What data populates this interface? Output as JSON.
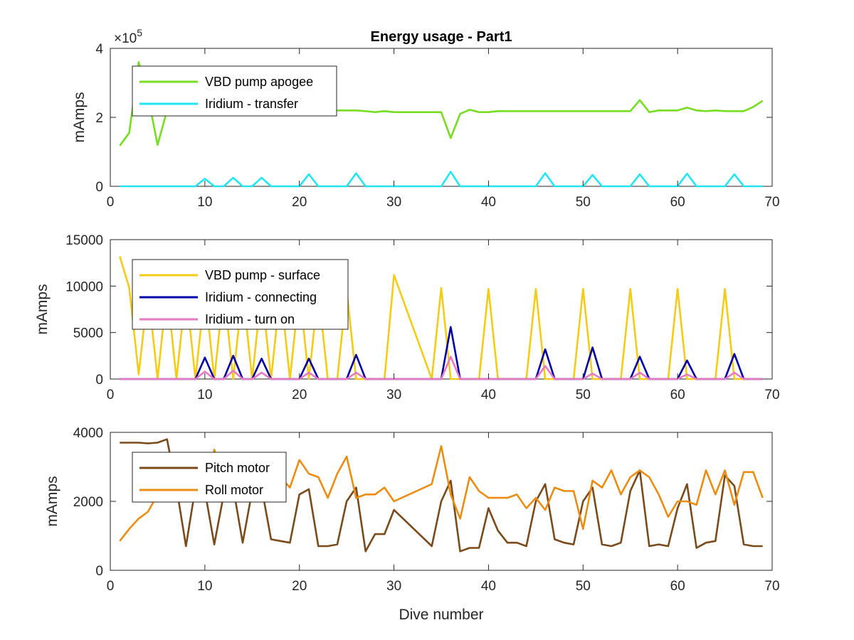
{
  "chart_data": [
    {
      "type": "line",
      "title": "Energy usage - Part1",
      "xlabel": "",
      "ylabel": "mAmps",
      "exponent_label": "×10^5",
      "exponent_base": "×10",
      "exponent_power": "5",
      "xlim": [
        0,
        70
      ],
      "ylim": [
        0,
        4
      ],
      "xticks": [
        0,
        10,
        20,
        30,
        40,
        50,
        60,
        70
      ],
      "yticks": [
        0,
        2,
        4
      ],
      "grid": false,
      "legend": "top-left",
      "series": [
        {
          "name": "VBD pump apogee",
          "color": "#77dd22",
          "x": [
            1,
            2,
            3,
            4,
            5,
            6,
            7,
            8,
            9,
            10,
            11,
            12,
            13,
            14,
            15,
            16,
            17,
            18,
            19,
            20,
            21,
            22,
            23,
            24,
            25,
            26,
            27,
            28,
            29,
            30,
            31,
            32,
            33,
            34,
            35,
            36,
            37,
            38,
            39,
            40,
            41,
            42,
            43,
            44,
            45,
            46,
            47,
            48,
            49,
            50,
            51,
            52,
            53,
            54,
            55,
            56,
            57,
            58,
            59,
            60,
            61,
            62,
            63,
            64,
            65,
            66,
            67,
            68,
            69
          ],
          "y": [
            1.18,
            1.55,
            3.6,
            2.6,
            1.2,
            2.2,
            2.2,
            2.2,
            2.2,
            2.2,
            2.2,
            2.2,
            2.2,
            2.2,
            2.2,
            2.2,
            2.2,
            2.2,
            2.2,
            2.2,
            2.2,
            2.2,
            2.2,
            2.2,
            2.2,
            2.2,
            2.18,
            2.15,
            2.18,
            2.15,
            2.15,
            2.15,
            2.15,
            2.15,
            2.15,
            1.4,
            2.1,
            2.22,
            2.15,
            2.15,
            2.18,
            2.18,
            2.18,
            2.18,
            2.18,
            2.18,
            2.18,
            2.18,
            2.18,
            2.18,
            2.18,
            2.18,
            2.18,
            2.18,
            2.18,
            2.5,
            2.15,
            2.2,
            2.2,
            2.2,
            2.28,
            2.2,
            2.18,
            2.2,
            2.18,
            2.18,
            2.18,
            2.3,
            2.48
          ]
        },
        {
          "name": "Iridium - transfer",
          "color": "#22e5f2",
          "x": [
            1,
            9,
            10,
            11,
            12,
            13,
            14,
            15,
            16,
            17,
            20,
            21,
            22,
            25,
            26,
            27,
            35,
            36,
            37,
            45,
            46,
            47,
            50,
            51,
            52,
            55,
            56,
            57,
            60,
            61,
            62,
            65,
            66,
            67,
            69
          ],
          "y": [
            0,
            0,
            0.22,
            0,
            0,
            0.25,
            0,
            0,
            0.25,
            0,
            0,
            0.35,
            0,
            0,
            0.38,
            0,
            0,
            0.42,
            0,
            0,
            0.38,
            0,
            0,
            0.33,
            0,
            0,
            0.35,
            0,
            0,
            0.37,
            0,
            0,
            0.35,
            0,
            0
          ]
        }
      ]
    },
    {
      "type": "line",
      "title": "",
      "xlabel": "",
      "ylabel": "mAmps",
      "xlim": [
        0,
        70
      ],
      "ylim": [
        0,
        15000
      ],
      "xticks": [
        0,
        10,
        20,
        30,
        40,
        50,
        60,
        70
      ],
      "yticks": [
        0,
        5000,
        10000,
        15000
      ],
      "grid": false,
      "legend": "top-left",
      "series": [
        {
          "name": "VBD pump - surface",
          "color": "#f4cc17",
          "x": [
            1,
            2,
            3,
            4,
            5,
            6,
            7,
            8,
            9,
            10,
            11,
            12,
            13,
            14,
            15,
            16,
            17,
            18,
            19,
            20,
            21,
            22,
            23,
            24,
            25,
            26,
            27,
            28,
            29,
            30,
            34,
            35,
            36,
            37,
            38,
            39,
            40,
            41,
            43,
            44,
            45,
            46,
            47,
            48,
            49,
            50,
            51,
            52,
            53,
            54,
            55,
            56,
            57,
            58,
            59,
            60,
            61,
            62,
            63,
            64,
            65,
            66,
            67,
            68,
            69
          ],
          "y": [
            13200,
            9800,
            500,
            9600,
            0,
            9600,
            0,
            9600,
            0,
            9600,
            0,
            9600,
            0,
            9600,
            0,
            9600,
            0,
            9600,
            0,
            9600,
            0,
            9600,
            0,
            0,
            9600,
            0,
            0,
            0,
            0,
            11200,
            0,
            9800,
            0,
            0,
            0,
            0,
            9700,
            0,
            0,
            0,
            9700,
            0,
            0,
            0,
            0,
            9700,
            0,
            0,
            0,
            0,
            9700,
            0,
            0,
            0,
            0,
            9700,
            0,
            0,
            0,
            0,
            9700,
            0,
            0,
            0,
            0
          ]
        },
        {
          "name": "Iridium - connecting",
          "color": "#0000a6",
          "x": [
            1,
            9,
            10,
            11,
            12,
            13,
            14,
            15,
            16,
            17,
            20,
            21,
            22,
            25,
            26,
            27,
            35,
            36,
            37,
            45,
            46,
            47,
            50,
            51,
            52,
            55,
            56,
            57,
            60,
            61,
            62,
            65,
            66,
            67,
            69
          ],
          "y": [
            0,
            0,
            2300,
            0,
            0,
            2500,
            0,
            0,
            2200,
            0,
            0,
            2200,
            0,
            0,
            2600,
            0,
            0,
            5600,
            0,
            0,
            3200,
            0,
            0,
            3400,
            0,
            0,
            2400,
            0,
            0,
            2000,
            0,
            0,
            2700,
            0,
            0
          ]
        },
        {
          "name": "Iridium - turn on",
          "color": "#e87ac3",
          "x": [
            1,
            9,
            10,
            11,
            12,
            13,
            14,
            15,
            16,
            17,
            20,
            21,
            22,
            25,
            26,
            27,
            35,
            36,
            37,
            45,
            46,
            47,
            50,
            51,
            52,
            55,
            56,
            57,
            60,
            61,
            62,
            65,
            66,
            67,
            69
          ],
          "y": [
            0,
            0,
            800,
            0,
            0,
            900,
            0,
            0,
            700,
            0,
            0,
            700,
            0,
            0,
            700,
            0,
            0,
            2400,
            0,
            0,
            1400,
            0,
            0,
            600,
            0,
            0,
            700,
            0,
            0,
            500,
            0,
            0,
            700,
            0,
            0
          ]
        }
      ]
    },
    {
      "type": "line",
      "title": "",
      "xlabel": "Dive number",
      "ylabel": "mAmps",
      "xlim": [
        0,
        70
      ],
      "ylim": [
        0,
        4000
      ],
      "xticks": [
        0,
        10,
        20,
        30,
        40,
        50,
        60,
        70
      ],
      "yticks": [
        0,
        2000,
        4000
      ],
      "grid": false,
      "legend": "top-left",
      "series": [
        {
          "name": "Pitch motor",
          "color": "#7a4a1a",
          "x": [
            1,
            2,
            3,
            4,
            5,
            6,
            7,
            8,
            9,
            10,
            11,
            12,
            13,
            14,
            15,
            16,
            17,
            18,
            19,
            20,
            21,
            22,
            23,
            24,
            25,
            26,
            27,
            28,
            29,
            30,
            34,
            35,
            36,
            37,
            38,
            39,
            40,
            41,
            42,
            43,
            44,
            45,
            46,
            47,
            48,
            49,
            50,
            51,
            52,
            53,
            54,
            55,
            56,
            57,
            58,
            59,
            60,
            61,
            62,
            63,
            64,
            65,
            66,
            67,
            68,
            69
          ],
          "y": [
            3700,
            3700,
            3700,
            3680,
            3700,
            3800,
            2400,
            700,
            2400,
            2300,
            750,
            2200,
            2400,
            800,
            2300,
            2400,
            900,
            850,
            800,
            2200,
            2350,
            700,
            700,
            750,
            2000,
            2400,
            550,
            1050,
            1050,
            1750,
            700,
            2000,
            2600,
            550,
            650,
            650,
            1800,
            1150,
            800,
            800,
            700,
            2000,
            2500,
            900,
            800,
            750,
            2000,
            2400,
            750,
            700,
            800,
            2300,
            2900,
            700,
            750,
            700,
            1800,
            2500,
            650,
            800,
            850,
            2750,
            2450,
            750,
            700,
            700
          ]
        },
        {
          "name": "Roll motor",
          "color": "#eb8d12",
          "x": [
            1,
            2,
            3,
            4,
            5,
            6,
            7,
            8,
            9,
            10,
            11,
            12,
            13,
            14,
            15,
            16,
            17,
            18,
            19,
            20,
            21,
            22,
            23,
            24,
            25,
            26,
            27,
            28,
            29,
            30,
            34,
            35,
            36,
            37,
            38,
            39,
            40,
            41,
            42,
            43,
            44,
            45,
            46,
            47,
            48,
            49,
            50,
            51,
            52,
            53,
            54,
            55,
            56,
            57,
            58,
            59,
            60,
            61,
            62,
            63,
            64,
            65,
            66,
            67,
            68,
            69
          ],
          "y": [
            850,
            1200,
            1500,
            1700,
            2200,
            2700,
            3000,
            2800,
            2500,
            2000,
            3500,
            2600,
            2800,
            2600,
            2400,
            3000,
            2400,
            2700,
            2400,
            3200,
            2800,
            2700,
            2100,
            2800,
            3300,
            2100,
            2200,
            2200,
            2400,
            2000,
            2500,
            3600,
            2200,
            1500,
            2700,
            2300,
            2100,
            2100,
            2100,
            2200,
            1800,
            2100,
            1750,
            2400,
            2300,
            2300,
            1200,
            2600,
            2400,
            2900,
            2200,
            2700,
            2900,
            2700,
            2200,
            1550,
            2000,
            2000,
            1900,
            2900,
            2200,
            2900,
            1900,
            2850,
            2850,
            2100
          ]
        }
      ]
    }
  ]
}
